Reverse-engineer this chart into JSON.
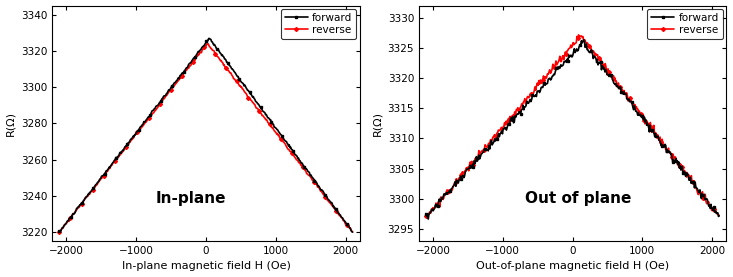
{
  "left_plot": {
    "xlabel": "In-plane magnetic field H (Oe)",
    "ylabel": "R(Ω)",
    "xlim": [
      -2200,
      2200
    ],
    "ylim": [
      3215,
      3345
    ],
    "yticks": [
      3220,
      3240,
      3260,
      3280,
      3300,
      3320,
      3340
    ],
    "xticks": [
      -2000,
      -1000,
      0,
      1000,
      2000
    ],
    "title_text": "In-plane",
    "peak_x": 50,
    "forward_peak_y": 3327,
    "reverse_peak_y": 3324,
    "base_y": 3220,
    "x_start": -2100,
    "x_end": 2100
  },
  "right_plot": {
    "xlabel": "Out-of-plane magnetic field H (Oe)",
    "ylabel": "R(Ω)",
    "xlim": [
      -2200,
      2200
    ],
    "ylim": [
      3293,
      3332
    ],
    "yticks": [
      3295,
      3300,
      3305,
      3310,
      3315,
      3320,
      3325,
      3330
    ],
    "xticks": [
      -2000,
      -1000,
      0,
      1000,
      2000
    ],
    "title_text": "Out of plane",
    "peak_x": 150,
    "forward_peak_y": 3326,
    "reverse_peak_y": 3327,
    "base_y": 3297,
    "x_start": -2100,
    "x_end": 2100
  },
  "forward_color": "#000000",
  "reverse_color": "#ff0000",
  "figsize": [
    7.33,
    2.77
  ],
  "dpi": 100
}
